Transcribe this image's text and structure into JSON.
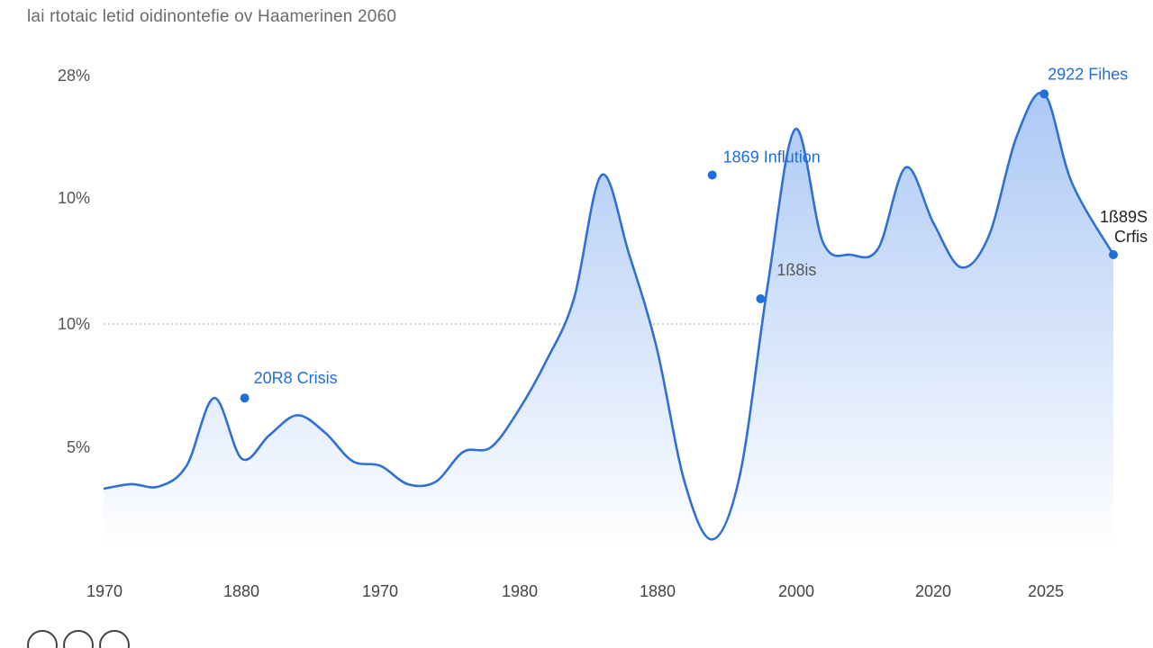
{
  "chart_data": {
    "type": "area",
    "title": "lai rtotaic letid oidinontefie ov Haamerinen 2060",
    "xlabel": "",
    "ylabel": "",
    "x_tick_labels": [
      "1970",
      "1880",
      "1970",
      "1980",
      "1880",
      "2000",
      "2020",
      "2025"
    ],
    "y_tick_labels": [
      "5%",
      "10%",
      "10%",
      "28%"
    ],
    "ylim": [
      0,
      30
    ],
    "x": [
      0,
      0.2,
      0.4,
      0.6,
      0.8,
      1.0,
      1.2,
      1.4,
      1.6,
      1.8,
      2.0,
      2.2,
      2.4,
      2.6,
      2.8,
      3.0,
      3.2,
      3.4,
      3.6,
      3.8,
      4.0,
      4.2,
      4.4,
      4.6,
      4.8,
      5.0,
      5.2,
      5.4,
      5.6,
      5.8,
      6.0,
      6.2,
      6.4,
      6.6,
      6.8,
      7.0,
      7.3
    ],
    "values": [
      3.2,
      3.4,
      3.3,
      4.2,
      7.0,
      4.5,
      5.5,
      6.3,
      5.6,
      4.4,
      4.2,
      3.4,
      3.5,
      4.8,
      5.0,
      6.5,
      8.5,
      12.0,
      21.5,
      15.5,
      9.0,
      3.5,
      1.0,
      3.8,
      13.0,
      24.5,
      16.5,
      15.5,
      16.0,
      22.0,
      18.0,
      14.5,
      17.0,
      24.0,
      26.8,
      21.0,
      15.5
    ],
    "grid": "dotted reference line at 10%",
    "legend": "none",
    "colors": {
      "line": "#2f6fd6",
      "fill_top": "#a8c6f5",
      "fill_bottom": "#ffffff",
      "annotation": "#1f6fd8",
      "reference_line": "#bbbbbb"
    },
    "annotations": [
      {
        "label": "20R8 Crisis",
        "x": 1.02,
        "y": 7.0,
        "dark": false
      },
      {
        "label": "1869 Inflution",
        "x": 4.4,
        "y": 21.5,
        "dark": false
      },
      {
        "label": "1ß8is",
        "x": 4.75,
        "y": 12.0,
        "dark": false
      },
      {
        "label": "2922 Fihes",
        "x": 6.8,
        "y": 26.8,
        "dark": false
      },
      {
        "label": "1ß89S",
        "x": 7.3,
        "y": 15.5,
        "dark": true
      },
      {
        "label": "Crfis",
        "x": 7.3,
        "y": 15.5,
        "dark": true
      }
    ]
  }
}
